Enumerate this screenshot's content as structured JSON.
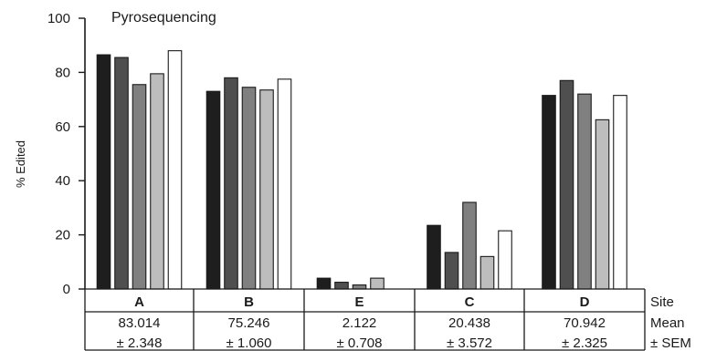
{
  "chart_data": {
    "type": "bar",
    "title": "Pyrosequencing",
    "ylabel": "% Edited",
    "ylim": [
      0,
      100
    ],
    "yticks": [
      0,
      20,
      40,
      60,
      80,
      100
    ],
    "grid": false,
    "legend": "none",
    "categories": [
      "A",
      "B",
      "E",
      "C",
      "D"
    ],
    "series": [
      {
        "values": [
          86.5,
          73.0,
          4.0,
          23.5,
          71.5
        ],
        "color": "#1e1e1e"
      },
      {
        "values": [
          85.5,
          78.0,
          2.5,
          13.5,
          77.0
        ],
        "color": "#4f4f4f"
      },
      {
        "values": [
          75.5,
          74.5,
          1.5,
          32.0,
          72.0
        ],
        "color": "#808080"
      },
      {
        "values": [
          79.5,
          73.5,
          4.0,
          12.0,
          62.5
        ],
        "color": "#bdbdbd"
      },
      {
        "values": [
          88.0,
          77.5,
          0.0,
          21.5,
          71.5
        ],
        "color": "#ffffff"
      }
    ],
    "table": {
      "row_labels": [
        "Site",
        "Mean",
        "± SEM"
      ],
      "mean": [
        "83.014",
        "75.246",
        "2.122",
        "20.438",
        "70.942"
      ],
      "sem": [
        "± 2.348",
        "± 1.060",
        "± 0.708",
        "± 3.572",
        "± 2.325"
      ]
    }
  }
}
